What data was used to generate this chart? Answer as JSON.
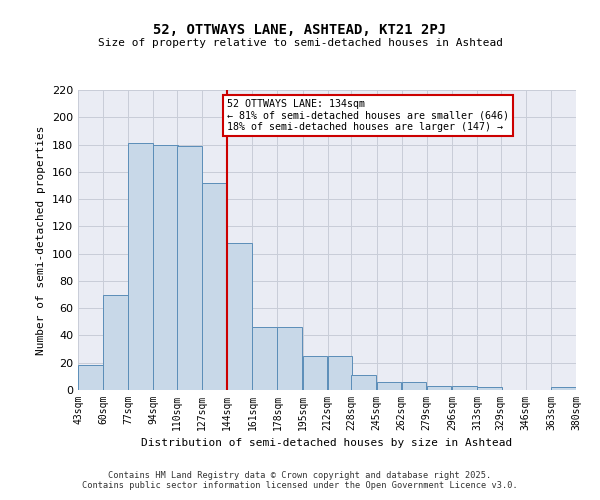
{
  "title1": "52, OTTWAYS LANE, ASHTEAD, KT21 2PJ",
  "title2": "Size of property relative to semi-detached houses in Ashtead",
  "xlabel": "Distribution of semi-detached houses by size in Ashtead",
  "ylabel": "Number of semi-detached properties",
  "bins": [
    43,
    60,
    77,
    94,
    110,
    127,
    144,
    161,
    178,
    195,
    212,
    228,
    245,
    262,
    279,
    296,
    313,
    329,
    346,
    363,
    380
  ],
  "bin_labels": [
    "43sqm",
    "60sqm",
    "77sqm",
    "94sqm",
    "110sqm",
    "127sqm",
    "144sqm",
    "161sqm",
    "178sqm",
    "195sqm",
    "212sqm",
    "228sqm",
    "245sqm",
    "262sqm",
    "279sqm",
    "296sqm",
    "313sqm",
    "329sqm",
    "346sqm",
    "363sqm",
    "380sqm"
  ],
  "counts": [
    18,
    70,
    181,
    180,
    179,
    152,
    108,
    46,
    46,
    25,
    25,
    11,
    6,
    6,
    3,
    3,
    2,
    0,
    0,
    2
  ],
  "property_bin_index": 6,
  "annotation_title": "52 OTTWAYS LANE: 134sqm",
  "annotation_line1": "← 81% of semi-detached houses are smaller (646)",
  "annotation_line2": "18% of semi-detached houses are larger (147) →",
  "bar_color": "#c8d8e8",
  "bar_edge_color": "#5b8db8",
  "vline_color": "#cc0000",
  "annotation_box_edge": "#cc0000",
  "grid_color": "#c8cdd8",
  "bg_color": "#eaecf4",
  "footer1": "Contains HM Land Registry data © Crown copyright and database right 2025.",
  "footer2": "Contains public sector information licensed under the Open Government Licence v3.0.",
  "ylim": [
    0,
    220
  ]
}
